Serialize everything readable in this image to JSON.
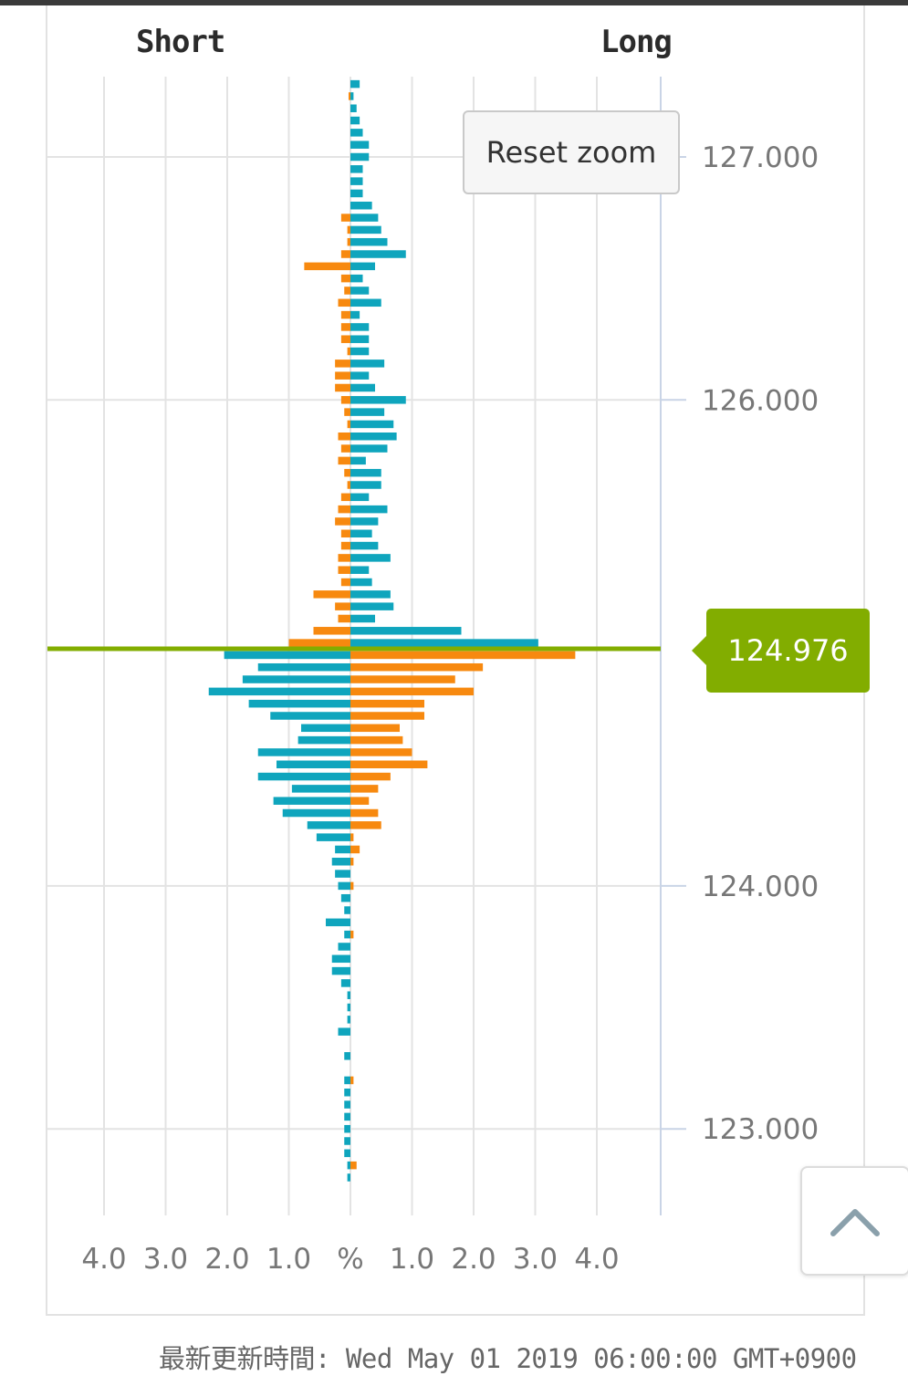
{
  "header": {
    "short_label": "Short",
    "long_label": "Long"
  },
  "controls": {
    "reset_zoom_label": "Reset zoom"
  },
  "current_price": {
    "value": "124.976",
    "color": "#82ad00"
  },
  "footer": {
    "timestamp_label": "最新更新時間: Wed May 01 2019 06:00:00 GMT+0900"
  },
  "scroll_top": {
    "icon": "chevron-up-icon"
  },
  "chart_data": {
    "type": "bar",
    "orientation": "horizontal",
    "title": "",
    "xlabel": "%",
    "price_axis_ticks": [
      "127.000",
      "126.000",
      "124.000",
      "123.000"
    ],
    "price_axis_tick_values": [
      127.0,
      126.0,
      124.0,
      123.0
    ],
    "percent_axis_ticks": [
      "4.0",
      "3.0",
      "2.0",
      "1.0",
      "%",
      "1.0",
      "2.0",
      "3.0",
      "4.0"
    ],
    "percent_axis_tick_values": [
      -4,
      -3,
      -2,
      -1,
      0,
      1,
      2,
      3,
      4
    ],
    "price_range": [
      122.5,
      127.35
    ],
    "percent_range": [
      -5,
      5
    ],
    "grid": true,
    "current_price": 124.976,
    "bucket_size": 0.05,
    "series": [
      {
        "side": "positions below current price",
        "color": "#0fa5bd",
        "upper": [
          {
            "p": 127.3,
            "long": 0.15,
            "short": 0
          },
          {
            "p": 127.25,
            "long": 0.05,
            "short": 0.03
          },
          {
            "p": 127.2,
            "long": 0.1,
            "short": 0
          },
          {
            "p": 127.15,
            "long": 0.15,
            "short": 0
          },
          {
            "p": 127.1,
            "long": 0.2,
            "short": 0
          },
          {
            "p": 127.05,
            "long": 0.3,
            "short": 0
          },
          {
            "p": 127.0,
            "long": 0.3,
            "short": 0
          },
          {
            "p": 126.95,
            "long": 0.2,
            "short": 0
          },
          {
            "p": 126.9,
            "long": 0.2,
            "short": 0
          },
          {
            "p": 126.85,
            "long": 0.2,
            "short": 0
          },
          {
            "p": 126.8,
            "long": 0.35,
            "short": 0
          },
          {
            "p": 126.75,
            "long": 0.45,
            "short": 0.15
          },
          {
            "p": 126.7,
            "long": 0.5,
            "short": 0.05
          },
          {
            "p": 126.65,
            "long": 0.6,
            "short": 0.05
          },
          {
            "p": 126.6,
            "long": 0.9,
            "short": 0.15
          },
          {
            "p": 126.55,
            "long": 0.4,
            "short": 0.75
          },
          {
            "p": 126.5,
            "long": 0.2,
            "short": 0.15
          },
          {
            "p": 126.45,
            "long": 0.3,
            "short": 0.1
          },
          {
            "p": 126.4,
            "long": 0.5,
            "short": 0.2
          },
          {
            "p": 126.35,
            "long": 0.15,
            "short": 0.15
          },
          {
            "p": 126.3,
            "long": 0.3,
            "short": 0.15
          },
          {
            "p": 126.25,
            "long": 0.3,
            "short": 0.15
          },
          {
            "p": 126.2,
            "long": 0.3,
            "short": 0.05
          },
          {
            "p": 126.15,
            "long": 0.55,
            "short": 0.25
          },
          {
            "p": 126.1,
            "long": 0.3,
            "short": 0.25
          },
          {
            "p": 126.05,
            "long": 0.4,
            "short": 0.25
          },
          {
            "p": 126.0,
            "long": 0.9,
            "short": 0.15
          },
          {
            "p": 125.95,
            "long": 0.55,
            "short": 0.1
          },
          {
            "p": 125.9,
            "long": 0.7,
            "short": 0.05
          },
          {
            "p": 125.85,
            "long": 0.75,
            "short": 0.2
          },
          {
            "p": 125.8,
            "long": 0.6,
            "short": 0.15
          },
          {
            "p": 125.75,
            "long": 0.25,
            "short": 0.2
          },
          {
            "p": 125.7,
            "long": 0.5,
            "short": 0.1
          },
          {
            "p": 125.65,
            "long": 0.5,
            "short": 0.05
          },
          {
            "p": 125.6,
            "long": 0.3,
            "short": 0.15
          },
          {
            "p": 125.55,
            "long": 0.6,
            "short": 0.2
          },
          {
            "p": 125.5,
            "long": 0.45,
            "short": 0.25
          },
          {
            "p": 125.45,
            "long": 0.35,
            "short": 0.15
          },
          {
            "p": 125.4,
            "long": 0.45,
            "short": 0.15
          },
          {
            "p": 125.35,
            "long": 0.65,
            "short": 0.2
          },
          {
            "p": 125.3,
            "long": 0.3,
            "short": 0.2
          },
          {
            "p": 125.25,
            "long": 0.35,
            "short": 0.15
          },
          {
            "p": 125.2,
            "long": 0.65,
            "short": 0.6
          },
          {
            "p": 125.15,
            "long": 0.7,
            "short": 0.25
          },
          {
            "p": 125.1,
            "long": 0.4,
            "short": 0.2
          },
          {
            "p": 125.05,
            "long": 1.8,
            "short": 0.6
          },
          {
            "p": 125.0,
            "long": 3.05,
            "short": 1.0
          }
        ],
        "lower": [
          {
            "p": 124.95,
            "long": 3.65,
            "short": 2.05
          },
          {
            "p": 124.9,
            "long": 2.15,
            "short": 1.5
          },
          {
            "p": 124.85,
            "long": 1.7,
            "short": 1.75
          },
          {
            "p": 124.8,
            "long": 2.0,
            "short": 2.3
          },
          {
            "p": 124.75,
            "long": 1.2,
            "short": 1.65
          },
          {
            "p": 124.7,
            "long": 1.2,
            "short": 1.3
          },
          {
            "p": 124.65,
            "long": 0.8,
            "short": 0.8
          },
          {
            "p": 124.6,
            "long": 0.85,
            "short": 0.85
          },
          {
            "p": 124.55,
            "long": 1.0,
            "short": 1.5
          },
          {
            "p": 124.5,
            "long": 1.25,
            "short": 1.2
          },
          {
            "p": 124.45,
            "long": 0.65,
            "short": 1.5
          },
          {
            "p": 124.4,
            "long": 0.45,
            "short": 0.95
          },
          {
            "p": 124.35,
            "long": 0.3,
            "short": 1.25
          },
          {
            "p": 124.3,
            "long": 0.45,
            "short": 1.1
          },
          {
            "p": 124.25,
            "long": 0.5,
            "short": 0.7
          },
          {
            "p": 124.2,
            "long": 0.05,
            "short": 0.55
          },
          {
            "p": 124.15,
            "long": 0.15,
            "short": 0.25
          },
          {
            "p": 124.1,
            "long": 0.05,
            "short": 0.3
          },
          {
            "p": 124.05,
            "long": 0.0,
            "short": 0.25
          },
          {
            "p": 124.0,
            "long": 0.05,
            "short": 0.2
          },
          {
            "p": 123.95,
            "long": 0.0,
            "short": 0.15
          },
          {
            "p": 123.9,
            "long": 0.0,
            "short": 0.1
          },
          {
            "p": 123.85,
            "long": 0.0,
            "short": 0.4
          },
          {
            "p": 123.8,
            "long": 0.05,
            "short": 0.1
          },
          {
            "p": 123.75,
            "long": 0.0,
            "short": 0.2
          },
          {
            "p": 123.7,
            "long": 0.0,
            "short": 0.3
          },
          {
            "p": 123.65,
            "long": 0.0,
            "short": 0.3
          },
          {
            "p": 123.6,
            "long": 0.0,
            "short": 0.15
          },
          {
            "p": 123.55,
            "long": 0.0,
            "short": 0.05
          },
          {
            "p": 123.5,
            "long": 0.0,
            "short": 0.05
          },
          {
            "p": 123.45,
            "long": 0.0,
            "short": 0.05
          },
          {
            "p": 123.4,
            "long": 0.0,
            "short": 0.2
          },
          {
            "p": 123.3,
            "long": 0.0,
            "short": 0.1
          },
          {
            "p": 123.2,
            "long": 0.05,
            "short": 0.1
          },
          {
            "p": 123.15,
            "long": 0.0,
            "short": 0.1
          },
          {
            "p": 123.1,
            "long": 0.0,
            "short": 0.1
          },
          {
            "p": 123.05,
            "long": 0.0,
            "short": 0.1
          },
          {
            "p": 123.0,
            "long": 0.0,
            "short": 0.1
          },
          {
            "p": 122.95,
            "long": 0.0,
            "short": 0.1
          },
          {
            "p": 122.9,
            "long": 0.0,
            "short": 0.1
          },
          {
            "p": 122.85,
            "long": 0.1,
            "short": 0.05
          },
          {
            "p": 122.8,
            "long": 0.0,
            "short": 0.05
          }
        ]
      }
    ],
    "colors": {
      "above_long": "#0fa5bd",
      "above_short": "#f7890f",
      "below_long": "#f7890f",
      "below_short": "#0fa5bd"
    }
  }
}
